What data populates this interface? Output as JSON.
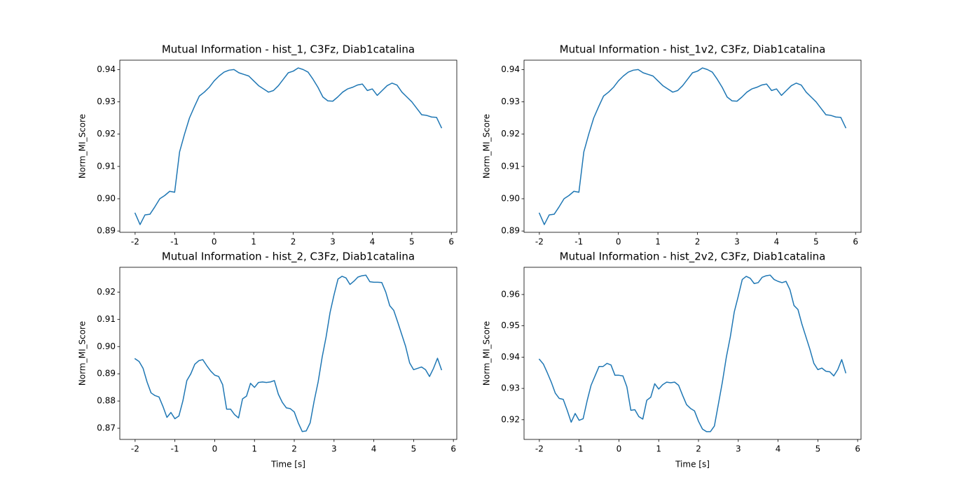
{
  "chart_data": [
    {
      "type": "line",
      "title": "Mutual Information - hist_1, C3Fz, Diab1catalina",
      "ylabel": "Norm_MI_Score",
      "color": "#1f77b4",
      "x": [
        -2,
        -1.875,
        -1.75,
        -1.625,
        -1.5,
        -1.375,
        -1.25,
        -1.125,
        -1,
        -0.875,
        -0.75,
        -0.625,
        -0.5,
        -0.375,
        -0.25,
        -0.125,
        0,
        0.125,
        0.25,
        0.375,
        0.5,
        0.625,
        0.75,
        0.875,
        1,
        1.125,
        1.25,
        1.375,
        1.5,
        1.625,
        1.75,
        1.875,
        2,
        2.125,
        2.25,
        2.375,
        2.5,
        2.625,
        2.75,
        2.875,
        3,
        3.125,
        3.25,
        3.375,
        3.5,
        3.625,
        3.75,
        3.875,
        4,
        4.125,
        4.25,
        4.375,
        4.5,
        4.625,
        4.75,
        4.875,
        5,
        5.125,
        5.25,
        5.375,
        5.5,
        5.625,
        5.75
      ],
      "values": [
        0.8955,
        0.892,
        0.895,
        0.8952,
        0.8975,
        0.9,
        0.901,
        0.9023,
        0.902,
        0.9145,
        0.92,
        0.925,
        0.9285,
        0.9318,
        0.933,
        0.9345,
        0.9365,
        0.938,
        0.9392,
        0.9398,
        0.94,
        0.939,
        0.9385,
        0.938,
        0.9365,
        0.935,
        0.934,
        0.933,
        0.9335,
        0.935,
        0.937,
        0.939,
        0.9395,
        0.9405,
        0.94,
        0.9392,
        0.937,
        0.9345,
        0.9315,
        0.9303,
        0.9302,
        0.9315,
        0.933,
        0.934,
        0.9345,
        0.9352,
        0.9355,
        0.9335,
        0.934,
        0.932,
        0.9335,
        0.935,
        0.9358,
        0.9352,
        0.933,
        0.9315,
        0.93,
        0.928,
        0.926,
        0.9258,
        0.9253,
        0.9252,
        0.922
      ],
      "xlim": [
        -2.3875,
        6.1375
      ],
      "ylim": [
        0.8896,
        0.9429
      ],
      "xticks": [
        -2,
        -1,
        0,
        1,
        2,
        3,
        4,
        5,
        6
      ],
      "yticks": [
        0.89,
        {
          "value": 0.9,
          "label": "0.90"
        },
        0.91,
        0.92,
        0.93,
        0.94
      ]
    },
    {
      "type": "line",
      "title": "Mutual Information - hist_1v2, C3Fz, Diab1catalina",
      "ylabel": "Norm_MI_Score",
      "color": "#1f77b4",
      "x": [
        -2,
        -1.875,
        -1.75,
        -1.625,
        -1.5,
        -1.375,
        -1.25,
        -1.125,
        -1,
        -0.875,
        -0.75,
        -0.625,
        -0.5,
        -0.375,
        -0.25,
        -0.125,
        0,
        0.125,
        0.25,
        0.375,
        0.5,
        0.625,
        0.75,
        0.875,
        1,
        1.125,
        1.25,
        1.375,
        1.5,
        1.625,
        1.75,
        1.875,
        2,
        2.125,
        2.25,
        2.375,
        2.5,
        2.625,
        2.75,
        2.875,
        3,
        3.125,
        3.25,
        3.375,
        3.5,
        3.625,
        3.75,
        3.875,
        4,
        4.125,
        4.25,
        4.375,
        4.5,
        4.625,
        4.75,
        4.875,
        5,
        5.125,
        5.25,
        5.375,
        5.5,
        5.625,
        5.75
      ],
      "values": [
        0.8955,
        0.892,
        0.895,
        0.8952,
        0.8975,
        0.9,
        0.901,
        0.9023,
        0.902,
        0.9145,
        0.92,
        0.925,
        0.9285,
        0.9318,
        0.933,
        0.9345,
        0.9365,
        0.938,
        0.9392,
        0.9398,
        0.94,
        0.939,
        0.9385,
        0.938,
        0.9365,
        0.935,
        0.934,
        0.933,
        0.9335,
        0.935,
        0.937,
        0.939,
        0.9395,
        0.9405,
        0.94,
        0.9392,
        0.937,
        0.9345,
        0.9315,
        0.9303,
        0.9302,
        0.9315,
        0.933,
        0.934,
        0.9345,
        0.9352,
        0.9355,
        0.9335,
        0.934,
        0.932,
        0.9335,
        0.935,
        0.9358,
        0.9352,
        0.933,
        0.9315,
        0.93,
        0.928,
        0.926,
        0.9258,
        0.9253,
        0.9252,
        0.922
      ],
      "xlim": [
        -2.3875,
        6.1375
      ],
      "ylim": [
        0.8896,
        0.9429
      ],
      "xticks": [
        -2,
        -1,
        0,
        1,
        2,
        3,
        4,
        5,
        6
      ],
      "yticks": [
        0.89,
        {
          "value": 0.9,
          "label": "0.90"
        },
        0.91,
        0.92,
        0.93,
        0.94
      ]
    },
    {
      "type": "line",
      "title": "Mutual Information - hist_2, C3Fz, Diab1catalina",
      "ylabel": "Norm_MI_Score",
      "xlabel": "Time [s]",
      "color": "#1f77b4",
      "x": [
        -2,
        -1.9,
        -1.8,
        -1.7,
        -1.6,
        -1.5,
        -1.4,
        -1.3,
        -1.2,
        -1.1,
        -1,
        -0.9,
        -0.8,
        -0.7,
        -0.6,
        -0.5,
        -0.4,
        -0.3,
        -0.2,
        -0.1,
        0,
        0.1,
        0.2,
        0.3,
        0.4,
        0.5,
        0.6,
        0.7,
        0.8,
        0.9,
        1,
        1.1,
        1.2,
        1.3,
        1.4,
        1.5,
        1.6,
        1.7,
        1.8,
        1.9,
        2,
        2.1,
        2.2,
        2.3,
        2.4,
        2.5,
        2.6,
        2.7,
        2.8,
        2.9,
        3,
        3.1,
        3.2,
        3.3,
        3.4,
        3.5,
        3.6,
        3.7,
        3.8,
        3.9,
        4,
        4.1,
        4.2,
        4.3,
        4.4,
        4.5,
        4.6,
        4.7,
        4.8,
        4.9,
        5,
        5.1,
        5.2,
        5.3,
        5.4,
        5.5,
        5.6,
        5.7
      ],
      "values": [
        0.8955,
        0.8945,
        0.892,
        0.887,
        0.883,
        0.882,
        0.8815,
        0.878,
        0.874,
        0.8758,
        0.8735,
        0.8745,
        0.88,
        0.8875,
        0.89,
        0.8935,
        0.8948,
        0.8952,
        0.893,
        0.891,
        0.8895,
        0.889,
        0.886,
        0.877,
        0.877,
        0.875,
        0.8738,
        0.8808,
        0.8818,
        0.8865,
        0.885,
        0.8868,
        0.887,
        0.8868,
        0.887,
        0.8875,
        0.8825,
        0.8795,
        0.8775,
        0.8772,
        0.876,
        0.872,
        0.8688,
        0.869,
        0.872,
        0.88,
        0.887,
        0.896,
        0.9035,
        0.9125,
        0.919,
        0.9248,
        0.9258,
        0.9252,
        0.9228,
        0.924,
        0.9255,
        0.926,
        0.9262,
        0.9238,
        0.9236,
        0.9236,
        0.9235,
        0.92,
        0.915,
        0.9133,
        0.909,
        0.9045,
        0.9,
        0.894,
        0.8915,
        0.892,
        0.8925,
        0.8915,
        0.889,
        0.892,
        0.8957,
        0.8915
      ],
      "xlim": [
        -2.385,
        6.085
      ],
      "ylim": [
        0.8659,
        0.9291
      ],
      "xticks": [
        -2,
        -1,
        0,
        1,
        2,
        3,
        4,
        5,
        6
      ],
      "yticks": [
        0.87,
        0.88,
        0.89,
        {
          "value": 0.9,
          "label": "0.90"
        },
        0.91,
        0.92
      ]
    },
    {
      "type": "line",
      "title": "Mutual Information - hist_2v2, C3Fz, Diab1catalina",
      "ylabel": "Norm_MI_Score",
      "xlabel": "Time [s]",
      "color": "#1f77b4",
      "x": [
        -2,
        -1.9,
        -1.8,
        -1.7,
        -1.6,
        -1.5,
        -1.4,
        -1.3,
        -1.2,
        -1.1,
        -1,
        -0.9,
        -0.8,
        -0.7,
        -0.6,
        -0.5,
        -0.4,
        -0.3,
        -0.2,
        -0.1,
        0,
        0.1,
        0.2,
        0.3,
        0.4,
        0.5,
        0.6,
        0.7,
        0.8,
        0.9,
        1,
        1.1,
        1.2,
        1.3,
        1.4,
        1.5,
        1.6,
        1.7,
        1.8,
        1.9,
        2,
        2.1,
        2.2,
        2.3,
        2.4,
        2.5,
        2.6,
        2.7,
        2.8,
        2.9,
        3,
        3.1,
        3.2,
        3.3,
        3.4,
        3.5,
        3.6,
        3.7,
        3.8,
        3.9,
        4,
        4.1,
        4.2,
        4.3,
        4.4,
        4.5,
        4.6,
        4.7,
        4.8,
        4.9,
        5,
        5.1,
        5.2,
        5.3,
        5.4,
        5.5,
        5.6,
        5.7
      ],
      "values": [
        0.9393,
        0.9378,
        0.935,
        0.932,
        0.9285,
        0.9268,
        0.9265,
        0.923,
        0.9192,
        0.922,
        0.9198,
        0.9203,
        0.926,
        0.931,
        0.934,
        0.937,
        0.937,
        0.938,
        0.9375,
        0.9342,
        0.9342,
        0.934,
        0.9305,
        0.923,
        0.9232,
        0.921,
        0.9202,
        0.9262,
        0.9272,
        0.9315,
        0.9298,
        0.9312,
        0.932,
        0.9318,
        0.932,
        0.931,
        0.9278,
        0.9248,
        0.9236,
        0.9228,
        0.9195,
        0.917,
        0.9162,
        0.9162,
        0.918,
        0.925,
        0.932,
        0.94,
        0.9465,
        0.9545,
        0.9595,
        0.9648,
        0.9658,
        0.9652,
        0.9635,
        0.9638,
        0.9655,
        0.966,
        0.9662,
        0.9648,
        0.9642,
        0.9638,
        0.9642,
        0.9615,
        0.9565,
        0.9552,
        0.9505,
        0.9465,
        0.9425,
        0.938,
        0.936,
        0.9365,
        0.9355,
        0.9353,
        0.934,
        0.936,
        0.9392,
        0.935
      ],
      "xlim": [
        -2.385,
        6.085
      ],
      "ylim": [
        0.9137,
        0.9687
      ],
      "xticks": [
        -2,
        -1,
        0,
        1,
        2,
        3,
        4,
        5,
        6
      ],
      "yticks": [
        0.92,
        0.93,
        0.94,
        0.95,
        0.96
      ]
    }
  ]
}
